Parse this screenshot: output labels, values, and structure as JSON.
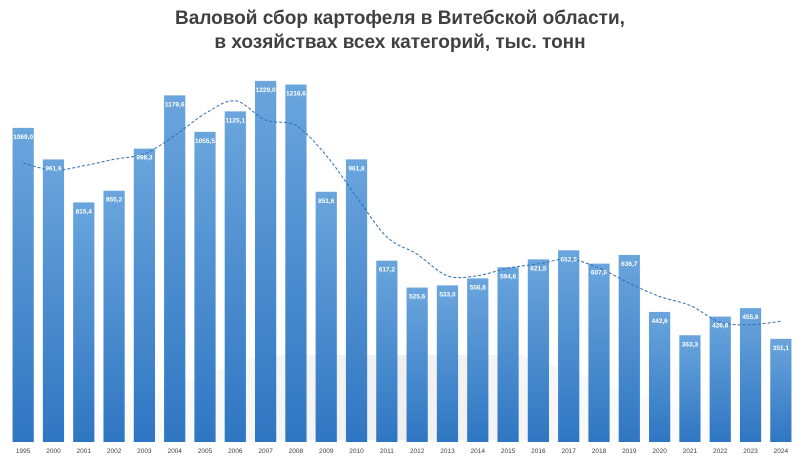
{
  "chart_data": {
    "type": "bar",
    "title": "Валовой сбор картофеля в Витебской области,",
    "subtitle": "в хозяйствах всех категорий, тыс. тонн",
    "xlabel": "",
    "ylabel": "",
    "categories": [
      "1995",
      "2000",
      "2001",
      "2002",
      "2003",
      "2004",
      "2005",
      "2006",
      "2007",
      "2008",
      "2009",
      "2010",
      "2011",
      "2012",
      "2013",
      "2014",
      "2015",
      "2016",
      "2017",
      "2018",
      "2019",
      "2020",
      "2021",
      "2022",
      "2023",
      "2024"
    ],
    "values": [
      1069.0,
      961.6,
      815.4,
      855.2,
      998.3,
      1179.6,
      1055.5,
      1125.1,
      1229.0,
      1216.6,
      851.6,
      961.8,
      617.2,
      525.6,
      533.0,
      556.8,
      594.6,
      621.5,
      652.5,
      607.0,
      636.7,
      442.6,
      363.3,
      426.8,
      455.6,
      351.1
    ],
    "labels": [
      "1069,0",
      "961,6",
      "815,4",
      "855,2",
      "998,3",
      "1179,6",
      "1055,5",
      "1125,1",
      "1229,0",
      "1216,6",
      "851,6",
      "961,8",
      "617,2",
      "525,6",
      "533,0",
      "556,8",
      "594,6",
      "621,5",
      "652,5",
      "607,0",
      "636,7",
      "442,6",
      "363,3",
      "426,8",
      "455,6",
      "351,1"
    ],
    "ylim": [
      0,
      1300
    ],
    "grid": false,
    "trendline": "dashed",
    "colors": {
      "bar_top": "#6aa5dd",
      "bar_bottom": "#2f76c2",
      "trend": "#2e6fb5",
      "title": "#404040"
    }
  }
}
